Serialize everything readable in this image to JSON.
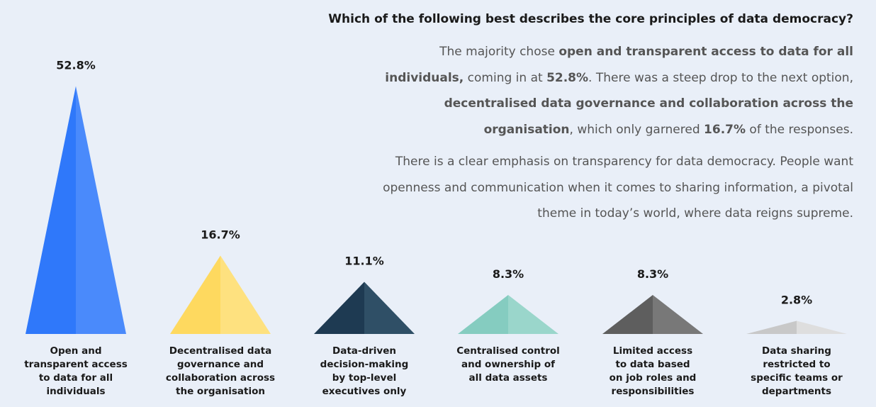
{
  "question": "Which of the following best describes the core principles of data democracy?",
  "paragraph1": {
    "t1": "The majority chose ",
    "b1": "open and transparent access to data for all individuals,",
    "t2": " coming in at ",
    "b2": "52.8%",
    "t3": ". There was a steep drop to the next option, ",
    "b3": "decentralised data governance and collaboration across the organisation",
    "t4": ", which only garnered ",
    "b4": "16.7%",
    "t5": " of the responses."
  },
  "paragraph2": "There is a clear emphasis on transparency for data democracy. People want openness and communication when it comes to sharing information, a pivotal theme in today’s world, where data reigns supreme.",
  "chart_data": {
    "type": "bar",
    "categories": [
      "Open and transparent access to data for all individuals",
      "Decentralised data governance and collaboration across the organisation",
      "Data-driven decision-making by top-level executives only",
      "Centralised control and ownership of all data assets",
      "Limited access to data based on job roles and responsibilities",
      "Data sharing restricted to specific teams or departments"
    ],
    "category_label_lines": [
      [
        "Open and",
        "transparent access",
        "to data for all",
        "individuals"
      ],
      [
        "Decentralised data",
        "governance and",
        "collaboration across",
        "the organisation"
      ],
      [
        "Data-driven",
        "decision-making",
        "by top-level",
        "executives only"
      ],
      [
        "Centralised control",
        "and ownership of",
        "all data assets"
      ],
      [
        "Limited access",
        "to data based",
        "on job roles and",
        "responsibilities"
      ],
      [
        "Data sharing",
        "restricted to",
        "specific teams or",
        "departments"
      ]
    ],
    "values": [
      52.8,
      16.7,
      11.1,
      8.3,
      8.3,
      2.8
    ],
    "value_labels": [
      "52.8%",
      "16.7%",
      "11.1%",
      "8.3%",
      "8.3%",
      "2.8%"
    ],
    "unit": "%",
    "mark_shape": "triangle",
    "colors": [
      [
        "#2f78fa",
        "#4a8afb"
      ],
      [
        "#fed95f",
        "#fee17f"
      ],
      [
        "#1e3a52",
        "#2f4f66"
      ],
      [
        "#85ccc0",
        "#9ad6cb"
      ],
      [
        "#5e5e5e",
        "#787878"
      ],
      [
        "#c8c8c8",
        "#dedede"
      ]
    ]
  }
}
